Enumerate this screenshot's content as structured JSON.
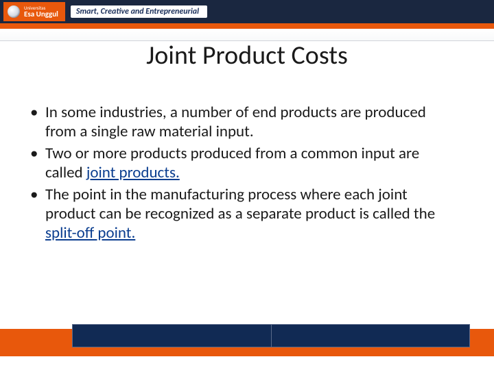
{
  "header": {
    "logo_small": "Universitas",
    "logo_name": "Esa Unggul",
    "tagline": "Smart, Creative and Entrepreneurial"
  },
  "title": "Joint Product Costs",
  "bullets": [
    {
      "pre": "In some industries, a number of end products are produced from a single raw material input.",
      "term": "",
      "post": ""
    },
    {
      "pre": "Two or more products produced from a common input are called ",
      "term": "joint products.",
      "post": ""
    },
    {
      "pre": "The point in the manufacturing process where each joint product can be recognized as a separate product is called the ",
      "term": "split-off point.",
      "post": ""
    }
  ],
  "colors": {
    "orange": "#e8580c",
    "dark_blue": "#112a54",
    "header_dark": "#1a2740",
    "link": "#0a3d8f"
  }
}
